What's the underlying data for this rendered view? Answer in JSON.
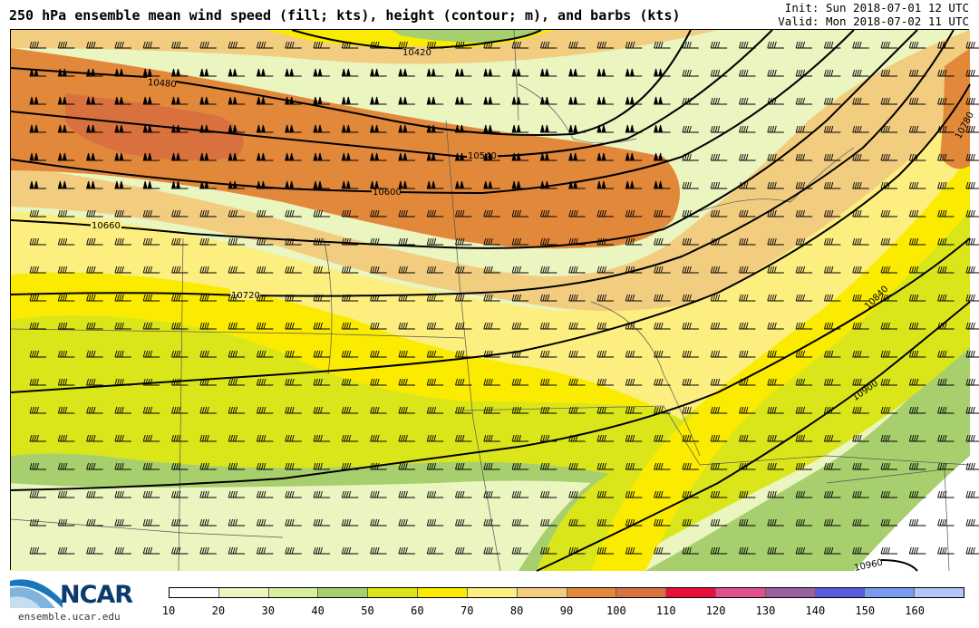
{
  "title": "250 hPa ensemble mean wind speed (fill; kts), height (contour; m), and barbs (kts)",
  "init": "Init: Sun 2018-07-01 12 UTC",
  "valid": "Valid: Mon 2018-07-02 11 UTC",
  "logo_text": "NCAR",
  "site": "ensemble.ucar.edu",
  "colorbar": {
    "colors": [
      "#ffffff",
      "#eaf5c0",
      "#d8ee9a",
      "#a8cf6e",
      "#dbe61a",
      "#fbeb00",
      "#fdee80",
      "#f2cd80",
      "#e2883a",
      "#d9713f",
      "#e8103a",
      "#e0508e",
      "#98609e",
      "#5a5ae0",
      "#7a9af0",
      "#b3c7f7"
    ],
    "ticks": [
      "10",
      "20",
      "30",
      "40",
      "50",
      "60",
      "70",
      "80",
      "90",
      "100",
      "110",
      "120",
      "130",
      "140",
      "150",
      "160"
    ]
  },
  "contour_labels": [
    "10420",
    "10480",
    "10540",
    "10600",
    "10660",
    "10720",
    "10780",
    "10840",
    "10900",
    "10960"
  ],
  "map_colors": {
    "light_green": "#eaf5c0",
    "green_yellow": "#dbe61a",
    "yellow": "#fbeb00",
    "pale_yellow": "#fdee80",
    "tan": "#f2cd80",
    "orange": "#e2883a",
    "dark_orange": "#d9713f",
    "green": "#a8cf6e",
    "mid_green": "#d8ee9a"
  }
}
